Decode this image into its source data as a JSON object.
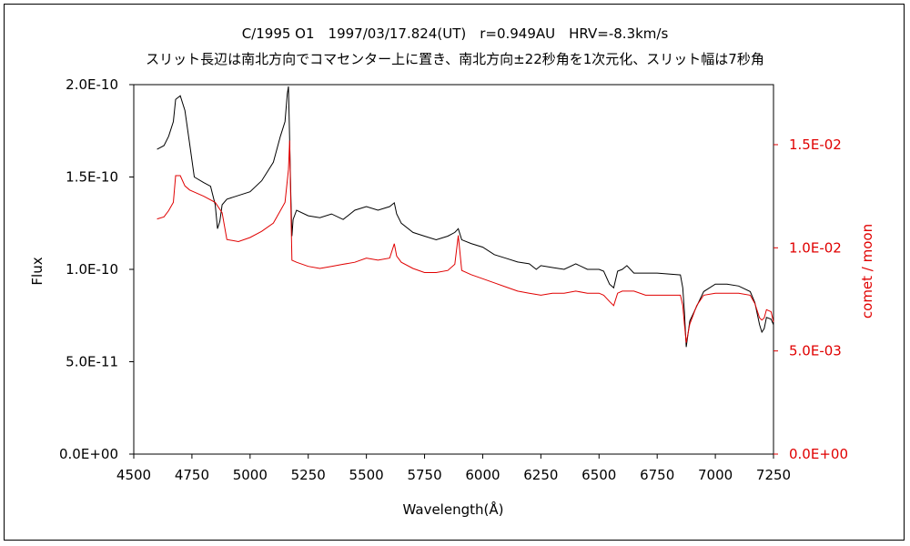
{
  "chart_data": {
    "type": "line",
    "title": "C/1995 O1　1997/03/17.824(UT)　r=0.949AU　HRV=-8.3km/s",
    "subtitle": "スリット長辺は南北方向でコマセンター上に置き、南北方向±22秒角を1次元化、スリット幅は7秒角",
    "xlabel": "Wavelength(Å)",
    "ylabel": "Flux",
    "y2label": "comet / moon",
    "xlim": [
      4500,
      7250
    ],
    "ylim": [
      0,
      2e-10
    ],
    "y2lim": [
      0,
      0.01791
    ],
    "xticks": [
      "4500",
      "4750",
      "5000",
      "5250",
      "5500",
      "5750",
      "6000",
      "6250",
      "6500",
      "6750",
      "7000",
      "7250"
    ],
    "yticks": [
      "0.0E+00",
      "5.0E-11",
      "1.0E-10",
      "1.5E-10",
      "2.0E-10"
    ],
    "y2ticks": [
      "0.0E+00",
      "5.0E-03",
      "1.0E-02",
      "1.5E-02"
    ],
    "colors": {
      "flux": "#000000",
      "ratio": "#e00000",
      "right_axis": "#e00000"
    },
    "series": [
      {
        "axis": "left",
        "color": "#000000",
        "x": [
          4600,
          4630,
          4650,
          4670,
          4680,
          4700,
          4720,
          4740,
          4760,
          4800,
          4830,
          4850,
          4860,
          4870,
          4880,
          4900,
          4950,
          5000,
          5050,
          5100,
          5130,
          5150,
          5160,
          5165,
          5170,
          5175,
          5180,
          5185,
          5200,
          5250,
          5300,
          5350,
          5400,
          5450,
          5500,
          5550,
          5600,
          5620,
          5630,
          5650,
          5700,
          5750,
          5800,
          5850,
          5880,
          5895,
          5910,
          5950,
          6000,
          6050,
          6100,
          6150,
          6200,
          6230,
          6250,
          6300,
          6350,
          6400,
          6450,
          6500,
          6520,
          6545,
          6563,
          6580,
          6600,
          6620,
          6650,
          6700,
          6750,
          6850,
          6860,
          6867,
          6875,
          6890,
          6920,
          6950,
          7000,
          7050,
          7100,
          7150,
          7170,
          7190,
          7200,
          7210,
          7220,
          7240,
          7250
        ],
        "y": [
          1.65e-10,
          1.67e-10,
          1.72e-10,
          1.8e-10,
          1.92e-10,
          1.94e-10,
          1.86e-10,
          1.68e-10,
          1.5e-10,
          1.47e-10,
          1.45e-10,
          1.35e-10,
          1.22e-10,
          1.26e-10,
          1.35e-10,
          1.38e-10,
          1.4e-10,
          1.42e-10,
          1.48e-10,
          1.58e-10,
          1.72e-10,
          1.8e-10,
          1.95e-10,
          1.99e-10,
          1.7e-10,
          1.4e-10,
          1.18e-10,
          1.27e-10,
          1.32e-10,
          1.29e-10,
          1.28e-10,
          1.3e-10,
          1.27e-10,
          1.32e-10,
          1.34e-10,
          1.32e-10,
          1.34e-10,
          1.36e-10,
          1.3e-10,
          1.25e-10,
          1.2e-10,
          1.18e-10,
          1.16e-10,
          1.18e-10,
          1.2e-10,
          1.22e-10,
          1.16e-10,
          1.14e-10,
          1.12e-10,
          1.08e-10,
          1.06e-10,
          1.04e-10,
          1.03e-10,
          1e-10,
          1.02e-10,
          1.01e-10,
          1e-10,
          1.03e-10,
          1e-10,
          1e-10,
          9.9e-11,
          9.2e-11,
          9e-11,
          9.9e-11,
          1e-10,
          1.02e-10,
          9.8e-11,
          9.8e-11,
          9.8e-11,
          9.7e-11,
          9e-11,
          7.7e-11,
          5.8e-11,
          7.2e-11,
          8e-11,
          8.8e-11,
          9.2e-11,
          9.2e-11,
          9.1e-11,
          8.8e-11,
          8.2e-11,
          7e-11,
          6.6e-11,
          6.8e-11,
          7.4e-11,
          7.3e-11,
          7e-11
        ]
      },
      {
        "axis": "right",
        "color": "#e00000",
        "x": [
          4600,
          4630,
          4650,
          4670,
          4680,
          4700,
          4720,
          4740,
          4760,
          4800,
          4850,
          4880,
          4900,
          4950,
          5000,
          5050,
          5100,
          5130,
          5150,
          5165,
          5170,
          5175,
          5180,
          5200,
          5250,
          5300,
          5350,
          5400,
          5450,
          5500,
          5550,
          5600,
          5620,
          5630,
          5650,
          5700,
          5750,
          5800,
          5850,
          5880,
          5895,
          5910,
          5950,
          6000,
          6050,
          6100,
          6150,
          6200,
          6250,
          6300,
          6350,
          6400,
          6450,
          6500,
          6520,
          6545,
          6563,
          6580,
          6600,
          6650,
          6700,
          6750,
          6850,
          6860,
          6867,
          6875,
          6890,
          6920,
          6950,
          7000,
          7050,
          7100,
          7150,
          7170,
          7190,
          7200,
          7210,
          7220,
          7240,
          7250
        ],
        "y": [
          0.0114,
          0.0115,
          0.0118,
          0.0122,
          0.0135,
          0.0135,
          0.013,
          0.0128,
          0.0127,
          0.0125,
          0.0122,
          0.0117,
          0.0104,
          0.0103,
          0.0105,
          0.0108,
          0.0112,
          0.0118,
          0.0122,
          0.0138,
          0.0152,
          0.012,
          0.0094,
          0.0093,
          0.0091,
          0.009,
          0.0091,
          0.0092,
          0.0093,
          0.0095,
          0.0094,
          0.0095,
          0.0102,
          0.0096,
          0.0093,
          0.009,
          0.0088,
          0.0088,
          0.0089,
          0.0092,
          0.0106,
          0.0089,
          0.0087,
          0.0085,
          0.0083,
          0.0081,
          0.0079,
          0.0078,
          0.0077,
          0.0078,
          0.0078,
          0.0079,
          0.0078,
          0.0078,
          0.0077,
          0.0074,
          0.0072,
          0.0078,
          0.0079,
          0.0079,
          0.0077,
          0.0077,
          0.0077,
          0.0072,
          0.0063,
          0.0054,
          0.0063,
          0.0072,
          0.0077,
          0.0078,
          0.0078,
          0.0078,
          0.0077,
          0.0073,
          0.0066,
          0.0065,
          0.0066,
          0.007,
          0.0069,
          0.0064
        ]
      }
    ]
  }
}
